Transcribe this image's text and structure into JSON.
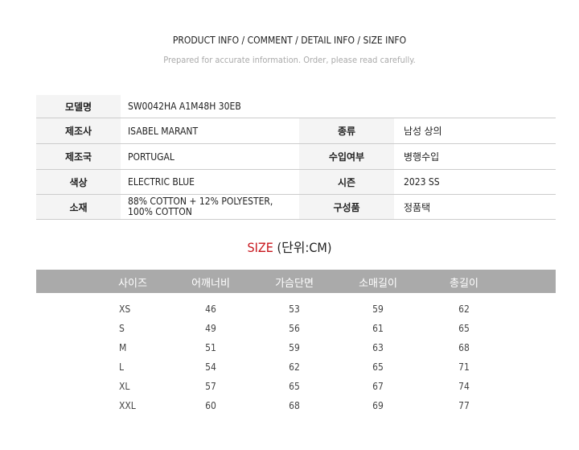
{
  "header": {
    "title": "PRODUCT INFO / COMMENT / DETAIL INFO / SIZE INFO",
    "subtitle": "Prepared for accurate information. Order, please read carefully."
  },
  "spec": {
    "model": {
      "label": "모델명",
      "value": "SW0042HA A1M48H 30EB"
    },
    "rows": [
      {
        "label1": "제조사",
        "value1": "ISABEL MARANT",
        "label2": "종류",
        "value2": "남성 상의"
      },
      {
        "label1": "제조국",
        "value1": "PORTUGAL",
        "label2": "수입여부",
        "value2": "병행수입"
      },
      {
        "label1": "색상",
        "value1": "ELECTRIC BLUE",
        "label2": "시즌",
        "value2": "2023 SS"
      },
      {
        "label1": "소재",
        "value1a": "88% COTTON + 12% POLYESTER,",
        "value1b": "100% COTTON",
        "label2": "구성품",
        "value2": "정품택"
      }
    ]
  },
  "size": {
    "title": "SIZE",
    "unit": "(단위:CM)",
    "accent": "#c8161d",
    "headers": [
      "사이즈",
      "어깨너비",
      "가슴단면",
      "소매길이",
      "총길이"
    ],
    "rows": [
      [
        "XS",
        "46",
        "53",
        "59",
        "62"
      ],
      [
        "S",
        "49",
        "56",
        "61",
        "65"
      ],
      [
        "M",
        "51",
        "59",
        "63",
        "68"
      ],
      [
        "L",
        "54",
        "62",
        "65",
        "71"
      ],
      [
        "XL",
        "57",
        "65",
        "67",
        "74"
      ],
      [
        "XXL",
        "60",
        "68",
        "69",
        "77"
      ]
    ]
  }
}
